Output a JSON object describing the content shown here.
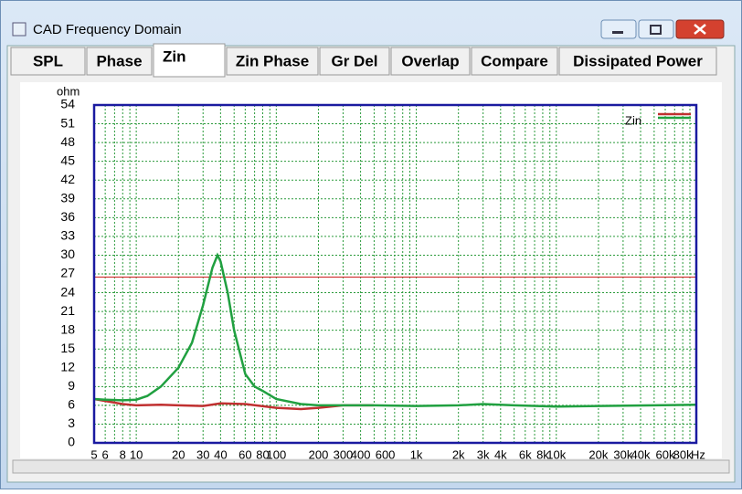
{
  "window": {
    "title": "CAD Frequency Domain"
  },
  "tabs": [
    "SPL",
    "Phase",
    "Zin",
    "Zin Phase",
    "Gr Del",
    "Overlap",
    "Compare",
    "Dissipated Power"
  ],
  "active_tab": 2,
  "chart_data": {
    "type": "line",
    "y_unit_label": "ohm",
    "x_unit_label": "Hz",
    "log_x": true,
    "grid": true,
    "legend": "top-right",
    "xlim": [
      5,
      100000
    ],
    "ylim": [
      0,
      54
    ],
    "yticks": [
      0,
      3,
      6,
      9,
      12,
      15,
      18,
      21,
      24,
      27,
      30,
      33,
      36,
      39,
      42,
      45,
      48,
      51,
      54
    ],
    "xticks": [
      5,
      6,
      8,
      10,
      20,
      30,
      40,
      60,
      80,
      100,
      200,
      300,
      400,
      600,
      {
        "value": 1000,
        "label": "1k"
      },
      {
        "value": 2000,
        "label": "2k"
      },
      {
        "value": 3000,
        "label": "3k"
      },
      {
        "value": 4000,
        "label": "4k"
      },
      {
        "value": 6000,
        "label": "6k"
      },
      {
        "value": 8000,
        "label": "8k"
      },
      {
        "value": 10000,
        "label": "10k"
      },
      {
        "value": 20000,
        "label": "20k"
      },
      {
        "value": 30000,
        "label": "30k"
      },
      {
        "value": 40000,
        "label": "40k"
      },
      {
        "value": 60000,
        "label": "60k"
      },
      {
        "value": 80000,
        "label": "80k"
      }
    ],
    "xminor": [
      7,
      9,
      50,
      70,
      90,
      500,
      700,
      800,
      900,
      5000,
      7000,
      9000,
      50000,
      70000,
      90000
    ],
    "reference_line": {
      "value": 26.5,
      "color": "#d03030"
    },
    "series": [
      {
        "name": "Zin",
        "color": "#20a040",
        "x": [
          5,
          6,
          8,
          10,
          12,
          15,
          20,
          25,
          30,
          35,
          38,
          40,
          45,
          50,
          60,
          70,
          80,
          100,
          150,
          200,
          300,
          500,
          1000,
          2000,
          3000,
          5000,
          10000,
          20000,
          50000,
          100000
        ],
        "values": [
          7,
          6.9,
          6.8,
          6.9,
          7.5,
          9,
          12,
          16,
          22,
          28,
          30,
          29,
          24,
          18,
          11,
          9,
          8.3,
          7,
          6.2,
          6,
          6,
          6,
          5.9,
          6,
          6.2,
          6,
          5.8,
          5.9,
          6,
          6.1
        ]
      },
      {
        "name": null,
        "color": "#c03030",
        "x": [
          5,
          8,
          10,
          15,
          20,
          30,
          40,
          60,
          100,
          150,
          200,
          300,
          500
        ],
        "values": [
          7,
          6.2,
          6,
          6.1,
          6,
          5.9,
          6.3,
          6.2,
          5.6,
          5.4,
          5.6,
          6,
          6
        ]
      }
    ]
  }
}
